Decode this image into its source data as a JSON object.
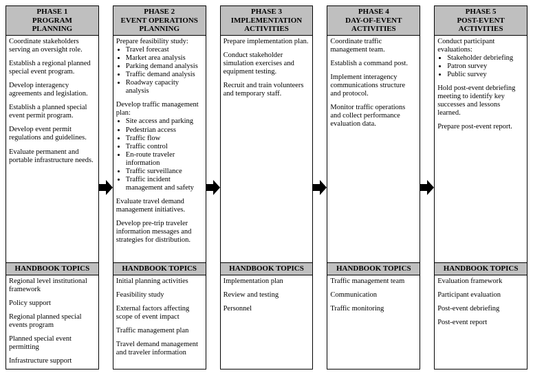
{
  "arrow": {
    "fill": "#000000",
    "width": 20,
    "height": 26
  },
  "phases": [
    {
      "title": "PHASE 1\nPROGRAM\nPLANNING",
      "body": [
        {
          "t": "p",
          "v": "Coordinate stakeholders serving an oversight role."
        },
        {
          "t": "p",
          "v": "Establish a regional planned special event program."
        },
        {
          "t": "p",
          "v": "Develop interagency agreements and legislation."
        },
        {
          "t": "p",
          "v": "Establish a planned special event permit program."
        },
        {
          "t": "p",
          "v": "Develop event permit regulations and guidelines."
        },
        {
          "t": "p",
          "v": "Evaluate permanent and portable infrastructure needs."
        }
      ],
      "handbook_title": "HANDBOOK TOPICS",
      "handbook": [
        {
          "t": "p",
          "v": "Regional level institutional framework"
        },
        {
          "t": "p",
          "v": "Policy support"
        },
        {
          "t": "p",
          "v": "Regional planned special events program"
        },
        {
          "t": "p",
          "v": "Planned special event permitting"
        },
        {
          "t": "p",
          "v": "Infrastructure support"
        }
      ]
    },
    {
      "title": "PHASE 2\nEVENT OPERATIONS\nPLANNING",
      "body": [
        {
          "t": "lead",
          "v": "Prepare feasibility study:"
        },
        {
          "t": "ul",
          "v": [
            "Travel forecast",
            "Market area analysis",
            "Parking demand analysis",
            "Traffic demand analysis",
            "Roadway capacity analysis"
          ]
        },
        {
          "t": "lead",
          "v": "Develop traffic management plan:"
        },
        {
          "t": "ul",
          "v": [
            "Site access and parking",
            "Pedestrian access",
            "Traffic flow",
            "Traffic control",
            "En-route traveler information",
            "Traffic surveillance",
            "Traffic incident management and safety"
          ]
        },
        {
          "t": "p",
          "v": "Evaluate travel demand management initiatives."
        },
        {
          "t": "p",
          "v": "Develop pre-trip traveler information messages and strategies for distribution."
        }
      ],
      "handbook_title": "HANDBOOK TOPICS",
      "handbook": [
        {
          "t": "p",
          "v": "Initial planning activities"
        },
        {
          "t": "p",
          "v": "Feasibility study"
        },
        {
          "t": "p",
          "v": "External factors affecting scope of event impact"
        },
        {
          "t": "p",
          "v": "Traffic management plan"
        },
        {
          "t": "p",
          "v": "Travel demand management and traveler information"
        }
      ]
    },
    {
      "title": "PHASE 3\nIMPLEMENTATION\nACTIVITIES",
      "body": [
        {
          "t": "p",
          "v": "Prepare implementation plan."
        },
        {
          "t": "p",
          "v": "Conduct stakeholder simulation exercises and equipment testing."
        },
        {
          "t": "p",
          "v": "Recruit and train volunteers and temporary staff."
        }
      ],
      "handbook_title": "HANDBOOK TOPICS",
      "handbook": [
        {
          "t": "p",
          "v": "Implementation plan"
        },
        {
          "t": "p",
          "v": "Review and testing"
        },
        {
          "t": "p",
          "v": "Personnel"
        }
      ]
    },
    {
      "title": "PHASE 4\nDAY-OF-EVENT\nACTIVITIES",
      "body": [
        {
          "t": "p",
          "v": "Coordinate traffic management team."
        },
        {
          "t": "p",
          "v": "Establish a command post."
        },
        {
          "t": "p",
          "v": "Implement interagency communications structure and protocol."
        },
        {
          "t": "p",
          "v": "Monitor traffic operations and collect performance evaluation data."
        }
      ],
      "handbook_title": "HANDBOOK TOPICS",
      "handbook": [
        {
          "t": "p",
          "v": "Traffic management team"
        },
        {
          "t": "p",
          "v": "Communication"
        },
        {
          "t": "p",
          "v": "Traffic monitoring"
        }
      ]
    },
    {
      "title": "PHASE 5\nPOST-EVENT\nACTIVITIES",
      "body": [
        {
          "t": "lead",
          "v": "Conduct participant evaluations:"
        },
        {
          "t": "ul",
          "v": [
            "Stakeholder debriefing",
            "Patron survey",
            "Public survey"
          ]
        },
        {
          "t": "p",
          "v": "Hold post-event debriefing meeting to identify key successes and lessons learned."
        },
        {
          "t": "p",
          "v": "Prepare post-event report."
        }
      ],
      "handbook_title": "HANDBOOK TOPICS",
      "handbook": [
        {
          "t": "p",
          "v": "Evaluation framework"
        },
        {
          "t": "p",
          "v": "Participant evaluation"
        },
        {
          "t": "p",
          "v": "Post-event debriefing"
        },
        {
          "t": "p",
          "v": "Post-event report"
        }
      ]
    }
  ]
}
